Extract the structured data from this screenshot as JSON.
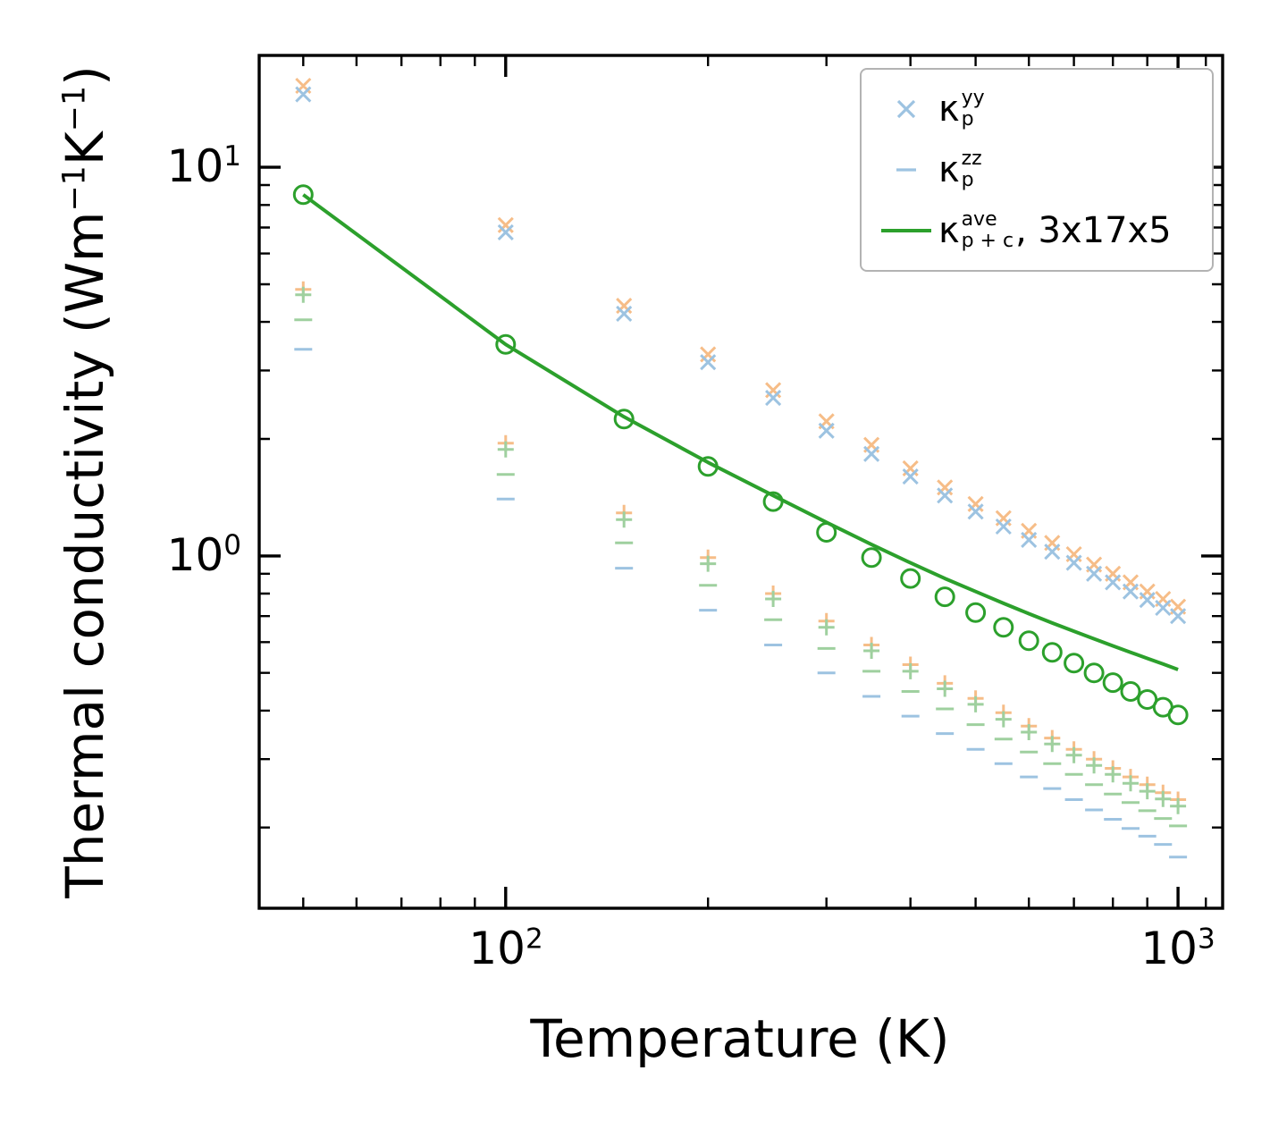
{
  "chart_data": {
    "type": "scatter",
    "title": "",
    "xlabel": "Temperature (K)",
    "ylabel": "Thermal conductivity (Wm⁻¹K⁻¹)",
    "xscale": "log",
    "yscale": "log",
    "xlim": [
      43,
      1165
    ],
    "ylim": [
      0.124,
      19.4
    ],
    "grid": false,
    "legend_position": "upper right",
    "xticks": [
      {
        "value": 100,
        "base": "10",
        "exp": "2"
      },
      {
        "value": 1000,
        "base": "10",
        "exp": "3"
      }
    ],
    "yticks": [
      {
        "value": 10,
        "base": "10",
        "exp": "1"
      },
      {
        "value": 1,
        "base": "10",
        "exp": "0"
      }
    ],
    "x_minor": [
      50,
      60,
      70,
      80,
      90,
      200,
      300,
      400,
      500,
      600,
      700,
      800,
      900,
      1100
    ],
    "y_minor": [
      0.2,
      0.3,
      0.4,
      0.5,
      0.6,
      0.7,
      0.8,
      0.9,
      2,
      3,
      4,
      5,
      6,
      7,
      8,
      9
    ],
    "temperatures": [
      50,
      100,
      150,
      200,
      250,
      300,
      350,
      400,
      450,
      500,
      550,
      600,
      650,
      700,
      750,
      800,
      850,
      900,
      950,
      1000
    ],
    "series": [
      {
        "name": "kappa-yy-orange",
        "marker": "x",
        "color": "#f6bd88",
        "values": [
          16.2,
          7.1,
          4.4,
          3.3,
          2.67,
          2.22,
          1.93,
          1.68,
          1.5,
          1.36,
          1.25,
          1.16,
          1.08,
          1.01,
          0.95,
          0.9,
          0.855,
          0.81,
          0.775,
          0.74
        ]
      },
      {
        "name": "kappa-yy-blue",
        "marker": "x",
        "color": "#9dc3e1",
        "values": [
          15.4,
          6.8,
          4.2,
          3.15,
          2.55,
          2.1,
          1.83,
          1.6,
          1.43,
          1.3,
          1.19,
          1.1,
          1.025,
          0.96,
          0.9,
          0.855,
          0.81,
          0.77,
          0.735,
          0.7
        ]
      },
      {
        "name": "kappa-zz-plus-orange",
        "marker": "+",
        "color": "#f6bd88",
        "values": [
          4.85,
          1.95,
          1.29,
          0.99,
          0.8,
          0.68,
          0.59,
          0.525,
          0.47,
          0.43,
          0.395,
          0.365,
          0.34,
          0.318,
          0.3,
          0.284,
          0.27,
          0.258,
          0.246,
          0.236
        ]
      },
      {
        "name": "kappa-zz-plus-green",
        "marker": "+",
        "color": "#9fd09f",
        "values": [
          4.7,
          1.88,
          1.24,
          0.955,
          0.775,
          0.655,
          0.57,
          0.505,
          0.455,
          0.415,
          0.38,
          0.352,
          0.328,
          0.307,
          0.289,
          0.274,
          0.26,
          0.248,
          0.237,
          0.227
        ]
      },
      {
        "name": "kappa-zz-minus-green",
        "marker": "-",
        "color": "#9fd09f",
        "values": [
          4.05,
          1.62,
          1.08,
          0.84,
          0.685,
          0.578,
          0.505,
          0.448,
          0.404,
          0.368,
          0.338,
          0.313,
          0.292,
          0.274,
          0.258,
          0.244,
          0.232,
          0.221,
          0.211,
          0.202
        ]
      },
      {
        "name": "kappa-zz-minus-blue",
        "marker": "-",
        "color": "#9dc3e1",
        "values": [
          3.4,
          1.4,
          0.93,
          0.725,
          0.59,
          0.5,
          0.435,
          0.387,
          0.349,
          0.318,
          0.292,
          0.27,
          0.252,
          0.236,
          0.222,
          0.21,
          0.199,
          0.19,
          0.181,
          0.168
        ]
      },
      {
        "name": "kappa-ave-line",
        "marker": "line",
        "color": "#2ca02c",
        "values": [
          8.5,
          3.5,
          2.28,
          1.74,
          1.43,
          1.22,
          1.07,
          0.96,
          0.875,
          0.81,
          0.755,
          0.71,
          0.672,
          0.64,
          0.612,
          0.587,
          0.565,
          0.545,
          0.527,
          0.51
        ]
      },
      {
        "name": "kappa-ave-circles",
        "marker": "o",
        "color": "#2ca02c",
        "values": [
          8.5,
          3.5,
          2.25,
          1.7,
          1.38,
          1.15,
          0.99,
          0.875,
          0.785,
          0.715,
          0.655,
          0.605,
          0.565,
          0.53,
          0.5,
          0.472,
          0.448,
          0.427,
          0.408,
          0.39
        ]
      }
    ]
  },
  "axis": {
    "xlabel": "Temperature (K)",
    "ylabel_prefix": "Thermal conductivity (Wm",
    "ylabel_sup1": "−1",
    "ylabel_mid": "K",
    "ylabel_sup2": "−1",
    "ylabel_suffix": ")"
  },
  "legend": {
    "items": [
      {
        "kappa": "κ",
        "sup": "yy",
        "sub": "p",
        "suffix": "",
        "marker": "x",
        "color": "#9dc3e1"
      },
      {
        "kappa": "κ",
        "sup": "zz",
        "sub": "p",
        "suffix": "",
        "marker": "minus",
        "color": "#9dc3e1"
      },
      {
        "kappa": "κ",
        "sup": "ave",
        "sub": "p + c",
        "suffix": ", 3x17x5",
        "marker": "line",
        "color": "#2ca02c"
      }
    ]
  }
}
